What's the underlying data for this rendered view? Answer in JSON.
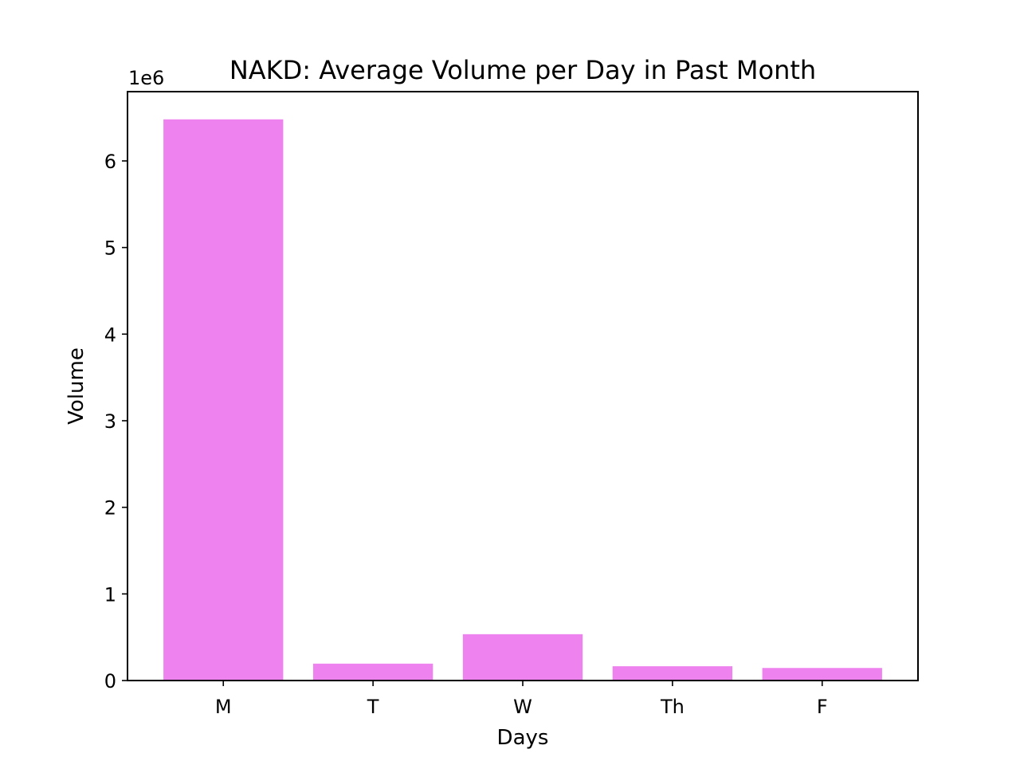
{
  "chart_data": {
    "type": "bar",
    "title": "NAKD: Average Volume per Day in Past Month",
    "xlabel": "Days",
    "ylabel": "Volume",
    "y_offset_label": "1e6",
    "categories": [
      "M",
      "T",
      "W",
      "Th",
      "F"
    ],
    "values": [
      6480000,
      195000,
      535000,
      165000,
      145000
    ],
    "ylim": [
      0,
      6800000
    ],
    "yticks": [
      0,
      1000000,
      2000000,
      3000000,
      4000000,
      5000000,
      6000000
    ],
    "ytick_labels": [
      "0",
      "1",
      "2",
      "3",
      "4",
      "5",
      "6"
    ],
    "bar_color": "#ee82ee",
    "grid": false,
    "legend": "none"
  }
}
